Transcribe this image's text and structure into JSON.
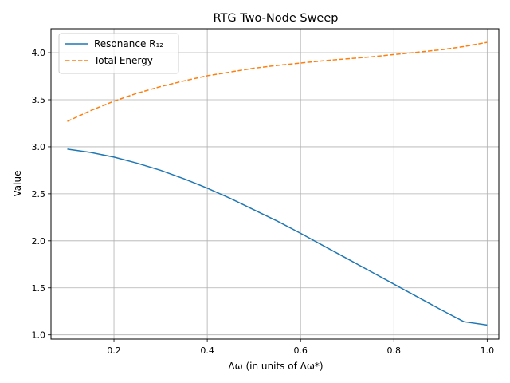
{
  "chart_data": {
    "type": "line",
    "title": "RTG Two-Node Sweep",
    "xlabel": "Δω (in units of Δω*)",
    "ylabel": "Value",
    "xlim": [
      0.065,
      1.025
    ],
    "ylim": [
      0.955,
      4.255
    ],
    "xticks": [
      {
        "value": 0.2,
        "label": "0.2"
      },
      {
        "value": 0.4,
        "label": "0.4"
      },
      {
        "value": 0.6,
        "label": "0.6"
      },
      {
        "value": 0.8,
        "label": "0.8"
      },
      {
        "value": 1.0,
        "label": "1.0"
      }
    ],
    "yticks": [
      {
        "value": 1.0,
        "label": "1.0"
      },
      {
        "value": 1.5,
        "label": "1.5"
      },
      {
        "value": 2.0,
        "label": "2.0"
      },
      {
        "value": 2.5,
        "label": "2.5"
      },
      {
        "value": 3.0,
        "label": "3.0"
      },
      {
        "value": 3.5,
        "label": "3.5"
      },
      {
        "value": 4.0,
        "label": "4.0"
      }
    ],
    "grid": true,
    "legend_position": "top-left",
    "x": [
      0.1,
      0.15,
      0.2,
      0.25,
      0.3,
      0.35,
      0.4,
      0.45,
      0.5,
      0.55,
      0.6,
      0.65,
      0.7,
      0.75,
      0.8,
      0.85,
      0.9,
      0.95,
      1.0
    ],
    "series": [
      {
        "name": "Resonance R₁₂",
        "color": "#1f77b4",
        "dash": "solid",
        "values": [
          2.975,
          2.94,
          2.89,
          2.825,
          2.75,
          2.66,
          2.56,
          2.45,
          2.33,
          2.21,
          2.08,
          1.945,
          1.81,
          1.675,
          1.54,
          1.405,
          1.27,
          1.14,
          1.105
        ]
      },
      {
        "name": "Total Energy",
        "color": "#ff7f0e",
        "dash": "dashed",
        "values": [
          3.27,
          3.385,
          3.485,
          3.57,
          3.64,
          3.7,
          3.755,
          3.795,
          3.835,
          3.865,
          3.89,
          3.915,
          3.935,
          3.955,
          3.98,
          4.005,
          4.03,
          4.065,
          4.11
        ]
      }
    ]
  }
}
